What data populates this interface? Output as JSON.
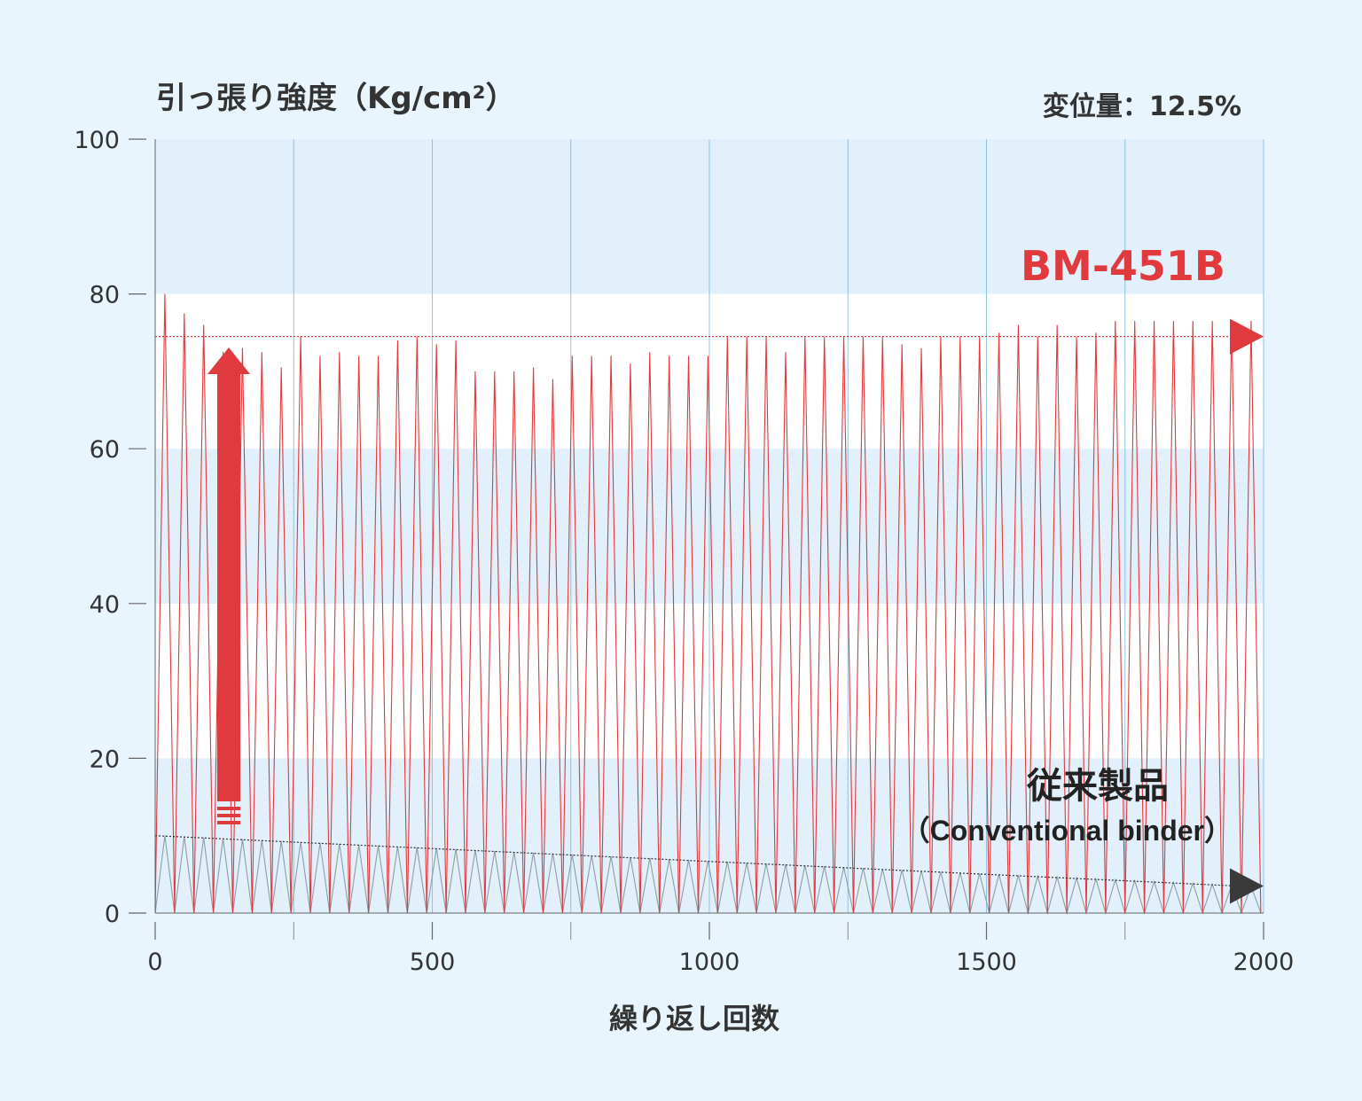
{
  "chart_data": {
    "type": "line",
    "title": "引っ張り強度（Kg/cm²）",
    "condition": "変位量：12.5%",
    "xlabel": "繰り返し回数",
    "ylabel": "",
    "xlim": [
      0,
      2000
    ],
    "ylim": [
      0,
      100
    ],
    "x_ticks": [
      "0",
      "500",
      "1000",
      "1500",
      "2000"
    ],
    "y_ticks": [
      "0",
      "20",
      "40",
      "60",
      "80",
      "100"
    ],
    "x_minor_ticks": [
      250,
      750,
      1250,
      1750
    ],
    "vertical_gridlines": [
      0,
      250,
      500,
      750,
      1000,
      1250,
      1500,
      1750,
      2000
    ],
    "grid": true,
    "band_colors": [
      "#e1f0fa",
      "#ffffff"
    ],
    "series": [
      {
        "name": "BM-451B",
        "color": "#e03a3e",
        "cycle_period": 35,
        "peaks": [
          80,
          77.5,
          76,
          72.5,
          73,
          72.5,
          70.5,
          74.5,
          72,
          72.5,
          72,
          72,
          74,
          74.5,
          73.5,
          74,
          70,
          70,
          70,
          70.5,
          69,
          72,
          72,
          72,
          71,
          72.5,
          72,
          72,
          72,
          74.5,
          74.5,
          74.5,
          72.5,
          74.5,
          74.5,
          74.5,
          74.5,
          74.5,
          73.5,
          73,
          74.5,
          74.5,
          74.5,
          75,
          76,
          74.5,
          76,
          74.5,
          75,
          76.5,
          76.5,
          76.5
        ],
        "trend_level": 74.5
      },
      {
        "name": "従来製品",
        "subtitle": "（Conventional binder）",
        "color": "#8e9ea5",
        "cycle_period": 35,
        "peak_start": 10,
        "peak_end": 3.5,
        "trend_start": 10,
        "trend_end": 3.5
      }
    ]
  }
}
